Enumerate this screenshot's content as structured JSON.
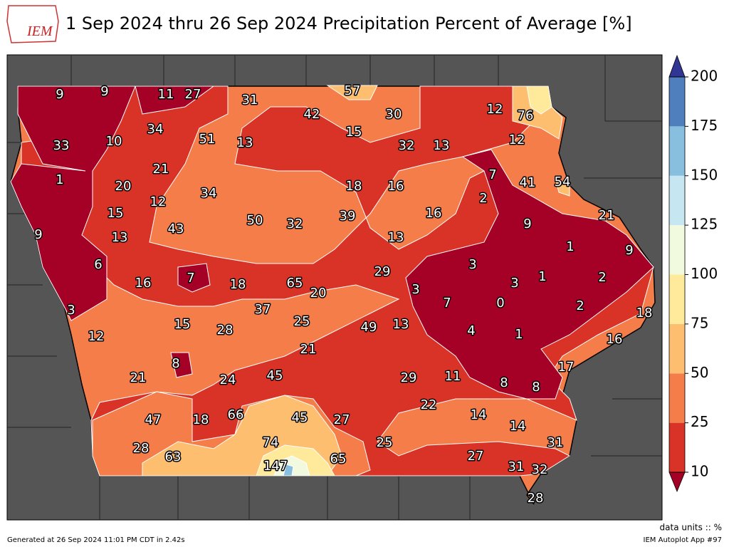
{
  "header": {
    "title": "1 Sep 2024 thru 26 Sep 2024 Precipitation Percent of Average [%]",
    "logo": "IEM"
  },
  "map": {
    "labels": [
      9,
      9,
      11,
      27,
      31,
      57,
      42,
      30,
      12,
      76,
      33,
      10,
      34,
      51,
      13,
      15,
      32,
      13,
      12,
      1,
      20,
      21,
      12,
      34,
      18,
      16,
      7,
      41,
      54,
      2,
      15,
      43,
      50,
      32,
      39,
      16,
      21,
      9,
      13,
      13,
      9,
      1,
      9,
      6,
      7,
      16,
      18,
      65,
      20,
      29,
      3,
      1,
      2,
      3,
      7,
      0,
      3,
      3,
      37,
      25,
      2,
      18,
      15,
      28,
      49,
      13,
      4,
      1,
      16,
      12,
      21,
      8,
      17,
      21,
      24,
      45,
      29,
      11,
      8,
      8,
      22,
      66,
      45,
      47,
      18,
      27,
      14,
      14,
      31,
      74,
      25,
      28,
      63,
      65,
      27,
      147,
      31,
      32,
      28
    ],
    "colorbar": {
      "ticks": [
        10,
        25,
        50,
        75,
        100,
        125,
        150,
        175,
        200
      ],
      "colors": [
        "#d93327",
        "#f47d4a",
        "#fdbf6f",
        "#feea9a",
        "#f1f9df",
        "#c6e6f1",
        "#88bfdf",
        "#4f7fbd"
      ],
      "under_color": "#a50026",
      "over_color": "#313695"
    }
  },
  "footer": {
    "units": "data units :: %",
    "generated": "Generated at 26 Sep 2024 11:01 PM CDT in 2.42s",
    "app": "IEM Autoplot App #97"
  }
}
